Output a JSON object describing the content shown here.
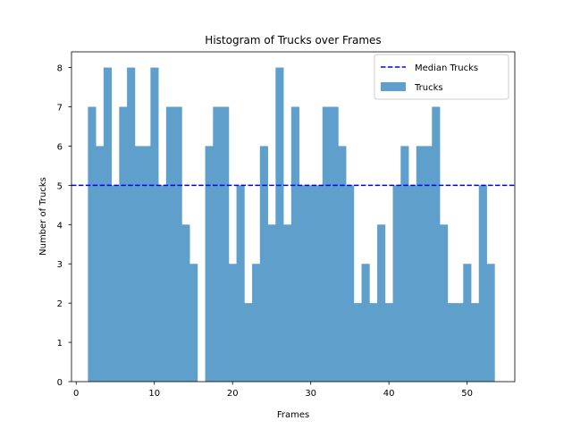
{
  "chart_data": {
    "type": "bar",
    "title": "Histogram of Trucks over Frames",
    "xlabel": "Frames",
    "ylabel": "Number of Trucks",
    "xlim": [
      -0.6,
      56.1
    ],
    "ylim": [
      0,
      8.4
    ],
    "xticks": [
      0,
      10,
      20,
      30,
      40,
      50
    ],
    "yticks": [
      0,
      1,
      2,
      3,
      4,
      5,
      6,
      7,
      8
    ],
    "bar_color": "#5f9fcb",
    "median_color": "#0000ff",
    "series": [
      {
        "name": "Trucks",
        "x": [
          2,
          3,
          4,
          5,
          6,
          7,
          8,
          9,
          10,
          11,
          12,
          13,
          14,
          15,
          16,
          17,
          18,
          19,
          20,
          21,
          22,
          23,
          24,
          25,
          26,
          27,
          28,
          29,
          30,
          31,
          32,
          33,
          34,
          35,
          36,
          37,
          38,
          39,
          40,
          41,
          42,
          43,
          44,
          45,
          46,
          47,
          48,
          49,
          50,
          51,
          52,
          53
        ],
        "values": [
          7,
          6,
          8,
          5,
          7,
          8,
          6,
          6,
          8,
          5,
          7,
          7,
          4,
          3,
          0,
          6,
          7,
          7,
          3,
          5,
          2,
          3,
          6,
          4,
          8,
          4,
          7,
          5,
          5,
          5,
          7,
          7,
          6,
          5,
          2,
          3,
          2,
          4,
          2,
          5,
          6,
          5,
          6,
          6,
          7,
          4,
          2,
          2,
          3,
          2,
          5,
          3
        ]
      }
    ],
    "median": 5,
    "legend": {
      "position": "top-right",
      "entries": [
        "Median Trucks",
        "Trucks"
      ]
    }
  }
}
